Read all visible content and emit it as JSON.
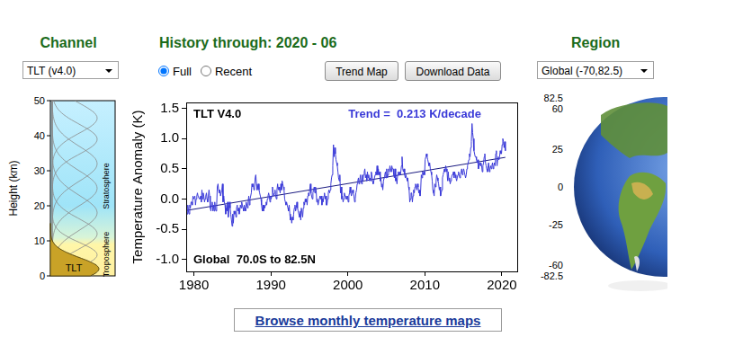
{
  "page": {
    "channel": {
      "heading": "Channel",
      "selected": "TLT (v4.0)"
    },
    "history": {
      "heading": "History through: 2020 - 06",
      "options": [
        "Full",
        "Recent"
      ],
      "selected": "Full"
    },
    "buttons": [
      "Trend Map",
      "Download Data"
    ],
    "region": {
      "heading": "Region",
      "selected": "Global (-70,82.5)"
    },
    "link": "Browse monthly temperature maps",
    "profile": {
      "axis_label": "Height (km)",
      "ylim": [
        0,
        50
      ],
      "yticks": [
        0,
        10,
        20,
        30,
        40,
        50
      ],
      "labels": [
        "TLT",
        "Troposphere",
        "Stratosphere"
      ]
    },
    "globe": {
      "latitude_ticks": [
        82.5,
        60,
        25,
        0,
        -25,
        -60,
        -82.5
      ]
    }
  },
  "chart_data": {
    "type": "line",
    "title": "TLT V4.0",
    "annotations": [
      "Trend =  0.213 K/decade",
      "Global  70.0S to 82.5N"
    ],
    "ylabel": "Temperature Anomaly (K)",
    "xlim": [
      1979,
      2022
    ],
    "xticks": [
      1980,
      1990,
      2000,
      2010,
      2020
    ],
    "ylim": [
      -1.2,
      1.6
    ],
    "yticks": [
      {
        "value": -1,
        "label": "-1.0"
      },
      -0.5,
      {
        "value": 0,
        "label": "0.0"
      },
      0.5,
      {
        "value": 1,
        "label": "1.0"
      },
      1.5
    ],
    "grid": false,
    "series": [
      {
        "color": "#3a3ad8",
        "x": [
          1979.04,
          1979.13,
          1979.21,
          1979.29,
          1979.38,
          1979.46,
          1979.54,
          1979.63,
          1979.71,
          1979.79,
          1979.88,
          1979.96,
          1980.04,
          1980.13,
          1980.21,
          1980.29,
          1980.38,
          1980.46,
          1980.54,
          1980.63,
          1980.71,
          1980.79,
          1980.88,
          1980.96,
          1981.04,
          1981.13,
          1981.21,
          1981.29,
          1981.38,
          1981.46,
          1981.54,
          1981.63,
          1981.71,
          1981.79,
          1981.88,
          1981.96,
          1982.04,
          1982.13,
          1982.21,
          1982.29,
          1982.38,
          1982.46,
          1982.54,
          1982.63,
          1982.71,
          1982.79,
          1982.88,
          1982.96,
          1983.04,
          1983.13,
          1983.21,
          1983.29,
          1983.38,
          1983.46,
          1983.54,
          1983.63,
          1983.71,
          1983.79,
          1983.88,
          1983.96,
          1984.04,
          1984.13,
          1984.21,
          1984.29,
          1984.38,
          1984.46,
          1984.54,
          1984.63,
          1984.71,
          1984.79,
          1984.88,
          1984.96,
          1985.04,
          1985.13,
          1985.21,
          1985.29,
          1985.38,
          1985.46,
          1985.54,
          1985.63,
          1985.71,
          1985.79,
          1985.88,
          1985.96,
          1986.04,
          1986.13,
          1986.21,
          1986.29,
          1986.38,
          1986.46,
          1986.54,
          1986.63,
          1986.71,
          1986.79,
          1986.88,
          1986.96,
          1987.04,
          1987.13,
          1987.21,
          1987.29,
          1987.38,
          1987.46,
          1987.54,
          1987.63,
          1987.71,
          1987.79,
          1987.88,
          1987.96,
          1988.04,
          1988.13,
          1988.21,
          1988.29,
          1988.38,
          1988.46,
          1988.54,
          1988.63,
          1988.71,
          1988.79,
          1988.88,
          1988.96,
          1989.04,
          1989.13,
          1989.21,
          1989.29,
          1989.38,
          1989.46,
          1989.54,
          1989.63,
          1989.71,
          1989.79,
          1989.88,
          1989.96,
          1990.04,
          1990.13,
          1990.21,
          1990.29,
          1990.38,
          1990.46,
          1990.54,
          1990.63,
          1990.71,
          1990.79,
          1990.88,
          1990.96,
          1991.04,
          1991.13,
          1991.21,
          1991.29,
          1991.38,
          1991.46,
          1991.54,
          1991.63,
          1991.71,
          1991.79,
          1991.88,
          1991.96,
          1992.04,
          1992.13,
          1992.21,
          1992.29,
          1992.38,
          1992.46,
          1992.54,
          1992.63,
          1992.71,
          1992.79,
          1992.88,
          1992.96,
          1993.04,
          1993.13,
          1993.21,
          1993.29,
          1993.38,
          1993.46,
          1993.54,
          1993.63,
          1993.71,
          1993.79,
          1993.88,
          1993.96,
          1994.04,
          1994.13,
          1994.21,
          1994.29,
          1994.38,
          1994.46,
          1994.54,
          1994.63,
          1994.71,
          1994.79,
          1994.88,
          1994.96,
          1995.04,
          1995.13,
          1995.21,
          1995.29,
          1995.38,
          1995.46,
          1995.54,
          1995.63,
          1995.71,
          1995.79,
          1995.88,
          1995.96,
          1996.04,
          1996.13,
          1996.21,
          1996.29,
          1996.38,
          1996.46,
          1996.54,
          1996.63,
          1996.71,
          1996.79,
          1996.88,
          1996.96,
          1997.04,
          1997.13,
          1997.21,
          1997.29,
          1997.38,
          1997.46,
          1997.54,
          1997.63,
          1997.71,
          1997.79,
          1997.88,
          1997.96,
          1998.04,
          1998.13,
          1998.21,
          1998.29,
          1998.38,
          1998.46,
          1998.54,
          1998.63,
          1998.71,
          1998.79,
          1998.88,
          1998.96,
          1999.04,
          1999.13,
          1999.21,
          1999.29,
          1999.38,
          1999.46,
          1999.54,
          1999.63,
          1999.71,
          1999.79,
          1999.88,
          1999.96,
          2000.04,
          2000.13,
          2000.21,
          2000.29,
          2000.38,
          2000.46,
          2000.54,
          2000.63,
          2000.71,
          2000.79,
          2000.88,
          2000.96,
          2001.04,
          2001.13,
          2001.21,
          2001.29,
          2001.38,
          2001.46,
          2001.54,
          2001.63,
          2001.71,
          2001.79,
          2001.88,
          2001.96,
          2002.04,
          2002.13,
          2002.21,
          2002.29,
          2002.38,
          2002.46,
          2002.54,
          2002.63,
          2002.71,
          2002.79,
          2002.88,
          2002.96,
          2003.04,
          2003.13,
          2003.21,
          2003.29,
          2003.38,
          2003.46,
          2003.54,
          2003.63,
          2003.71,
          2003.79,
          2003.88,
          2003.96,
          2004.04,
          2004.13,
          2004.21,
          2004.29,
          2004.38,
          2004.46,
          2004.54,
          2004.63,
          2004.71,
          2004.79,
          2004.88,
          2004.96,
          2005.04,
          2005.13,
          2005.21,
          2005.29,
          2005.38,
          2005.46,
          2005.54,
          2005.63,
          2005.71,
          2005.79,
          2005.88,
          2005.96,
          2006.04,
          2006.13,
          2006.21,
          2006.29,
          2006.38,
          2006.46,
          2006.54,
          2006.63,
          2006.71,
          2006.79,
          2006.88,
          2006.96,
          2007.04,
          2007.13,
          2007.21,
          2007.29,
          2007.38,
          2007.46,
          2007.54,
          2007.63,
          2007.71,
          2007.79,
          2007.88,
          2007.96,
          2008.04,
          2008.13,
          2008.21,
          2008.29,
          2008.38,
          2008.46,
          2008.54,
          2008.63,
          2008.71,
          2008.79,
          2008.88,
          2008.96,
          2009.04,
          2009.13,
          2009.21,
          2009.29,
          2009.38,
          2009.46,
          2009.54,
          2009.63,
          2009.71,
          2009.79,
          2009.88,
          2009.96,
          2010.04,
          2010.13,
          2010.21,
          2010.29,
          2010.38,
          2010.46,
          2010.54,
          2010.63,
          2010.71,
          2010.79,
          2010.88,
          2010.96,
          2011.04,
          2011.13,
          2011.21,
          2011.29,
          2011.38,
          2011.46,
          2011.54,
          2011.63,
          2011.71,
          2011.79,
          2011.88,
          2011.96,
          2012.04,
          2012.13,
          2012.21,
          2012.29,
          2012.38,
          2012.46,
          2012.54,
          2012.63,
          2012.71,
          2012.79,
          2012.88,
          2012.96,
          2013.04,
          2013.13,
          2013.21,
          2013.29,
          2013.38,
          2013.46,
          2013.54,
          2013.63,
          2013.71,
          2013.79,
          2013.88,
          2013.96,
          2014.04,
          2014.13,
          2014.21,
          2014.29,
          2014.38,
          2014.46,
          2014.54,
          2014.63,
          2014.71,
          2014.79,
          2014.88,
          2014.96,
          2015.04,
          2015.13,
          2015.21,
          2015.29,
          2015.38,
          2015.46,
          2015.54,
          2015.63,
          2015.71,
          2015.79,
          2015.88,
          2015.96,
          2016.04,
          2016.13,
          2016.21,
          2016.29,
          2016.38,
          2016.46,
          2016.54,
          2016.63,
          2016.71,
          2016.79,
          2016.88,
          2016.96,
          2017.04,
          2017.13,
          2017.21,
          2017.29,
          2017.38,
          2017.46,
          2017.54,
          2017.63,
          2017.71,
          2017.79,
          2017.88,
          2017.96,
          2018.04,
          2018.13,
          2018.21,
          2018.29,
          2018.38,
          2018.46,
          2018.54,
          2018.63,
          2018.71,
          2018.79,
          2018.88,
          2018.96,
          2019.04,
          2019.13,
          2019.21,
          2019.29,
          2019.38,
          2019.46,
          2019.54,
          2019.63,
          2019.71,
          2019.79,
          2019.88,
          2019.96,
          2020.04,
          2020.13,
          2020.21,
          2020.29,
          2020.38,
          2020.46
        ],
        "values": [
          -0.15,
          -0.25,
          -0.1,
          -0.2,
          -0.25,
          -0.1,
          -0.15,
          -0.05,
          -0.05,
          -0.1,
          0.05,
          0.0,
          0.0,
          0.05,
          -0.1,
          0.0,
          0.05,
          0.1,
          0.05,
          0.05,
          0.0,
          0.0,
          0.05,
          -0.05,
          0.15,
          0.0,
          0.1,
          0.05,
          -0.05,
          0.0,
          0.05,
          0.1,
          0.0,
          -0.05,
          0.05,
          0.15,
          0.05,
          -0.15,
          -0.2,
          -0.1,
          -0.05,
          -0.2,
          -0.1,
          -0.2,
          -0.05,
          -0.15,
          -0.2,
          -0.1,
          0.2,
          0.25,
          0.15,
          0.1,
          0.15,
          0.05,
          0.05,
          0.15,
          0.25,
          -0.05,
          0.05,
          -0.05,
          -0.1,
          -0.25,
          -0.15,
          -0.2,
          -0.05,
          -0.3,
          -0.15,
          -0.05,
          -0.15,
          -0.25,
          -0.35,
          -0.45,
          -0.25,
          -0.4,
          -0.2,
          -0.25,
          -0.2,
          -0.3,
          -0.15,
          -0.1,
          -0.2,
          -0.15,
          -0.25,
          -0.2,
          -0.1,
          -0.15,
          -0.05,
          -0.1,
          -0.15,
          -0.2,
          -0.1,
          -0.15,
          -0.2,
          -0.05,
          -0.1,
          -0.15,
          -0.05,
          0.05,
          -0.1,
          0.0,
          0.05,
          0.1,
          0.25,
          0.2,
          0.25,
          0.15,
          0.2,
          0.35,
          0.4,
          0.25,
          0.15,
          0.2,
          0.25,
          0.15,
          0.1,
          0.05,
          0.0,
          -0.1,
          -0.2,
          -0.1,
          -0.2,
          -0.1,
          -0.15,
          -0.1,
          -0.05,
          -0.1,
          0.0,
          0.05,
          0.1,
          0.05,
          -0.05,
          0.05,
          0.0,
          0.05,
          0.2,
          0.1,
          0.05,
          0.1,
          0.15,
          0.05,
          0.0,
          0.15,
          0.25,
          0.15,
          0.2,
          0.15,
          0.1,
          0.25,
          0.15,
          0.3,
          0.25,
          0.2,
          0.15,
          0.0,
          -0.05,
          -0.1,
          -0.05,
          -0.1,
          -0.15,
          -0.2,
          -0.1,
          -0.25,
          -0.35,
          -0.3,
          -0.4,
          -0.3,
          -0.35,
          -0.25,
          -0.15,
          -0.1,
          -0.2,
          -0.15,
          -0.05,
          -0.15,
          -0.2,
          -0.25,
          -0.3,
          -0.2,
          -0.35,
          -0.15,
          -0.15,
          -0.3,
          -0.15,
          -0.05,
          -0.1,
          0.0,
          -0.05,
          0.0,
          -0.1,
          0.05,
          0.1,
          0.05,
          0.15,
          0.25,
          0.1,
          0.05,
          0.0,
          0.1,
          0.15,
          0.2,
          0.1,
          0.2,
          0.15,
          -0.05,
          0.0,
          -0.1,
          -0.05,
          -0.05,
          0.05,
          0.0,
          0.05,
          -0.1,
          0.0,
          -0.05,
          0.05,
          0.1,
          0.0,
          0.05,
          -0.1,
          -0.1,
          0.0,
          0.1,
          0.15,
          0.1,
          0.15,
          0.25,
          0.35,
          0.4,
          0.55,
          0.9,
          0.7,
          0.85,
          0.75,
          0.65,
          0.6,
          0.55,
          0.45,
          0.35,
          0.3,
          0.4,
          0.1,
          0.2,
          0.0,
          0.05,
          -0.05,
          0.0,
          0.1,
          0.05,
          0.05,
          0.0,
          0.0,
          0.05,
          -0.05,
          0.05,
          0.1,
          0.2,
          0.1,
          0.05,
          0.1,
          0.15,
          0.1,
          0.05,
          -0.05,
          0.0,
          0.1,
          0.15,
          0.25,
          0.3,
          0.35,
          0.25,
          0.3,
          0.4,
          0.3,
          0.25,
          0.4,
          0.3,
          0.4,
          0.45,
          0.5,
          0.35,
          0.4,
          0.3,
          0.45,
          0.35,
          0.4,
          0.3,
          0.35,
          0.3,
          0.45,
          0.4,
          0.3,
          0.25,
          0.3,
          0.35,
          0.4,
          0.45,
          0.4,
          0.55,
          0.4,
          0.5,
          0.4,
          0.45,
          0.3,
          0.35,
          0.2,
          0.25,
          0.15,
          0.3,
          0.35,
          0.4,
          0.45,
          0.35,
          0.5,
          0.35,
          0.4,
          0.5,
          0.45,
          0.55,
          0.5,
          0.45,
          0.55,
          0.5,
          0.5,
          0.4,
          0.35,
          0.5,
          0.3,
          0.35,
          0.25,
          0.4,
          0.45,
          0.4,
          0.45,
          0.4,
          0.45,
          0.55,
          0.7,
          0.5,
          0.45,
          0.5,
          0.4,
          0.35,
          0.4,
          0.35,
          0.3,
          0.35,
          0.2,
          0.15,
          -0.05,
          0.0,
          0.1,
          0.1,
          -0.05,
          0.05,
          0.15,
          0.1,
          0.2,
          0.25,
          0.2,
          0.15,
          0.25,
          0.2,
          0.1,
          0.15,
          0.05,
          0.15,
          0.4,
          0.35,
          0.45,
          0.4,
          0.45,
          0.4,
          0.65,
          0.7,
          0.75,
          0.7,
          0.65,
          0.6,
          0.55,
          0.6,
          0.5,
          0.45,
          0.4,
          0.3,
          0.15,
          0.1,
          0.05,
          0.25,
          0.2,
          0.3,
          0.4,
          0.35,
          0.3,
          0.25,
          0.15,
          0.2,
          0.05,
          0.1,
          0.15,
          0.35,
          0.4,
          0.45,
          0.5,
          0.45,
          0.55,
          0.5,
          0.45,
          0.3,
          0.45,
          0.3,
          0.35,
          0.25,
          0.3,
          0.35,
          0.4,
          0.4,
          0.45,
          0.35,
          0.45,
          0.4,
          0.35,
          0.3,
          0.35,
          0.4,
          0.45,
          0.4,
          0.35,
          0.4,
          0.45,
          0.5,
          0.4,
          0.45,
          0.5,
          0.45,
          0.45,
          0.35,
          0.4,
          0.5,
          0.55,
          0.6,
          0.65,
          0.75,
          0.7,
          0.85,
          0.95,
          1.25,
          1.1,
          1.0,
          0.8,
          0.75,
          0.7,
          0.7,
          0.65,
          0.6,
          0.65,
          0.5,
          0.55,
          0.6,
          0.55,
          0.6,
          0.55,
          0.45,
          0.55,
          0.6,
          0.7,
          0.75,
          0.6,
          0.55,
          0.5,
          0.45,
          0.55,
          0.6,
          0.45,
          0.5,
          0.55,
          0.5,
          0.55,
          0.6,
          0.5,
          0.55,
          0.6,
          0.55,
          0.75,
          0.8,
          0.55,
          0.65,
          0.7,
          0.65,
          0.7,
          0.8,
          0.75,
          0.75,
          0.9,
          1.0,
          0.95,
          0.85,
          0.95,
          0.8
        ]
      },
      {
        "color": "#1a1a80",
        "x": [
          1979.04,
          2020.46
        ],
        "values": [
          -0.19,
          0.69
        ]
      }
    ]
  }
}
